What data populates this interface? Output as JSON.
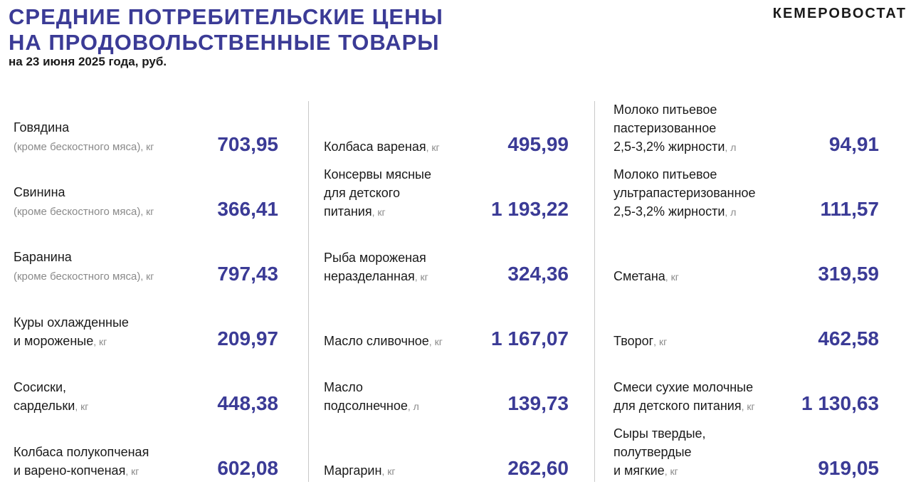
{
  "header": {
    "title_line1": "СРЕДНИЕ ПОТРЕБИТЕЛЬСКИЕ ЦЕНЫ",
    "title_line2": "НА ПРОДОВОЛЬСТВЕННЫЕ ТОВАРЫ",
    "subtitle": "на 23 июня 2025 года, руб.",
    "brand": "КЕМЕРОВОСТАТ"
  },
  "colors": {
    "accent": "#3b3b96",
    "unit": "#8a8a8a",
    "divider": "#c8c8c8"
  },
  "columns": [
    {
      "items": [
        {
          "lines": [
            "Говядина"
          ],
          "last": "(кроме бескостного мяса)",
          "unit": "кг",
          "price": "703,95",
          "muted_last": true
        },
        {
          "lines": [
            "Свинина"
          ],
          "last": "(кроме бескостного мяса)",
          "unit": "кг",
          "price": "366,41",
          "muted_last": true
        },
        {
          "lines": [
            "Баранина"
          ],
          "last": "(кроме бескостного мяса)",
          "unit": "кг",
          "price": "797,43",
          "muted_last": true
        },
        {
          "lines": [
            "Куры охлажденные"
          ],
          "last": "и мороженые",
          "unit": "кг",
          "price": "209,97"
        },
        {
          "lines": [
            "Сосиски,"
          ],
          "last": "сардельки",
          "unit": "кг",
          "price": "448,38"
        },
        {
          "lines": [
            "Колбаса полукопченая"
          ],
          "last": "и варено-копченая",
          "unit": "кг",
          "price": "602,08"
        }
      ]
    },
    {
      "items": [
        {
          "lines": [],
          "last": "Колбаса вареная",
          "unit": "кг",
          "price": "495,99"
        },
        {
          "lines": [
            "Консервы мясные",
            "для детского"
          ],
          "last": "питания",
          "unit": "кг",
          "price": "1 193,22"
        },
        {
          "lines": [
            "Рыба мороженая"
          ],
          "last": "неразделанная",
          "unit": "кг",
          "price": "324,36"
        },
        {
          "lines": [],
          "last": "Масло сливочное",
          "unit": "кг",
          "price": "1 167,07"
        },
        {
          "lines": [
            "Масло"
          ],
          "last": "подсолнечное",
          "unit": "л",
          "price": "139,73"
        },
        {
          "lines": [],
          "last": "Маргарин",
          "unit": "кг",
          "price": "262,60"
        }
      ]
    },
    {
      "items": [
        {
          "lines": [
            "Молоко питьевое",
            "пастеризованное"
          ],
          "last": "2,5-3,2% жирности",
          "unit": "л",
          "price": "94,91"
        },
        {
          "lines": [
            "Молоко питьевое",
            "ультрапастеризованное"
          ],
          "last": "2,5-3,2% жирности",
          "unit": "л",
          "price": "111,57"
        },
        {
          "lines": [],
          "last": "Сметана",
          "unit": "кг",
          "price": "319,59"
        },
        {
          "lines": [],
          "last": "Творог",
          "unit": "кг",
          "price": "462,58"
        },
        {
          "lines": [
            "Смеси сухие молочные"
          ],
          "last": "для детского питания",
          "unit": "кг",
          "price": "1 130,63"
        },
        {
          "lines": [
            "Сыры твердые,",
            "полутвердые"
          ],
          "last": "и мягкие",
          "unit": "кг",
          "price": "919,05"
        }
      ]
    }
  ]
}
